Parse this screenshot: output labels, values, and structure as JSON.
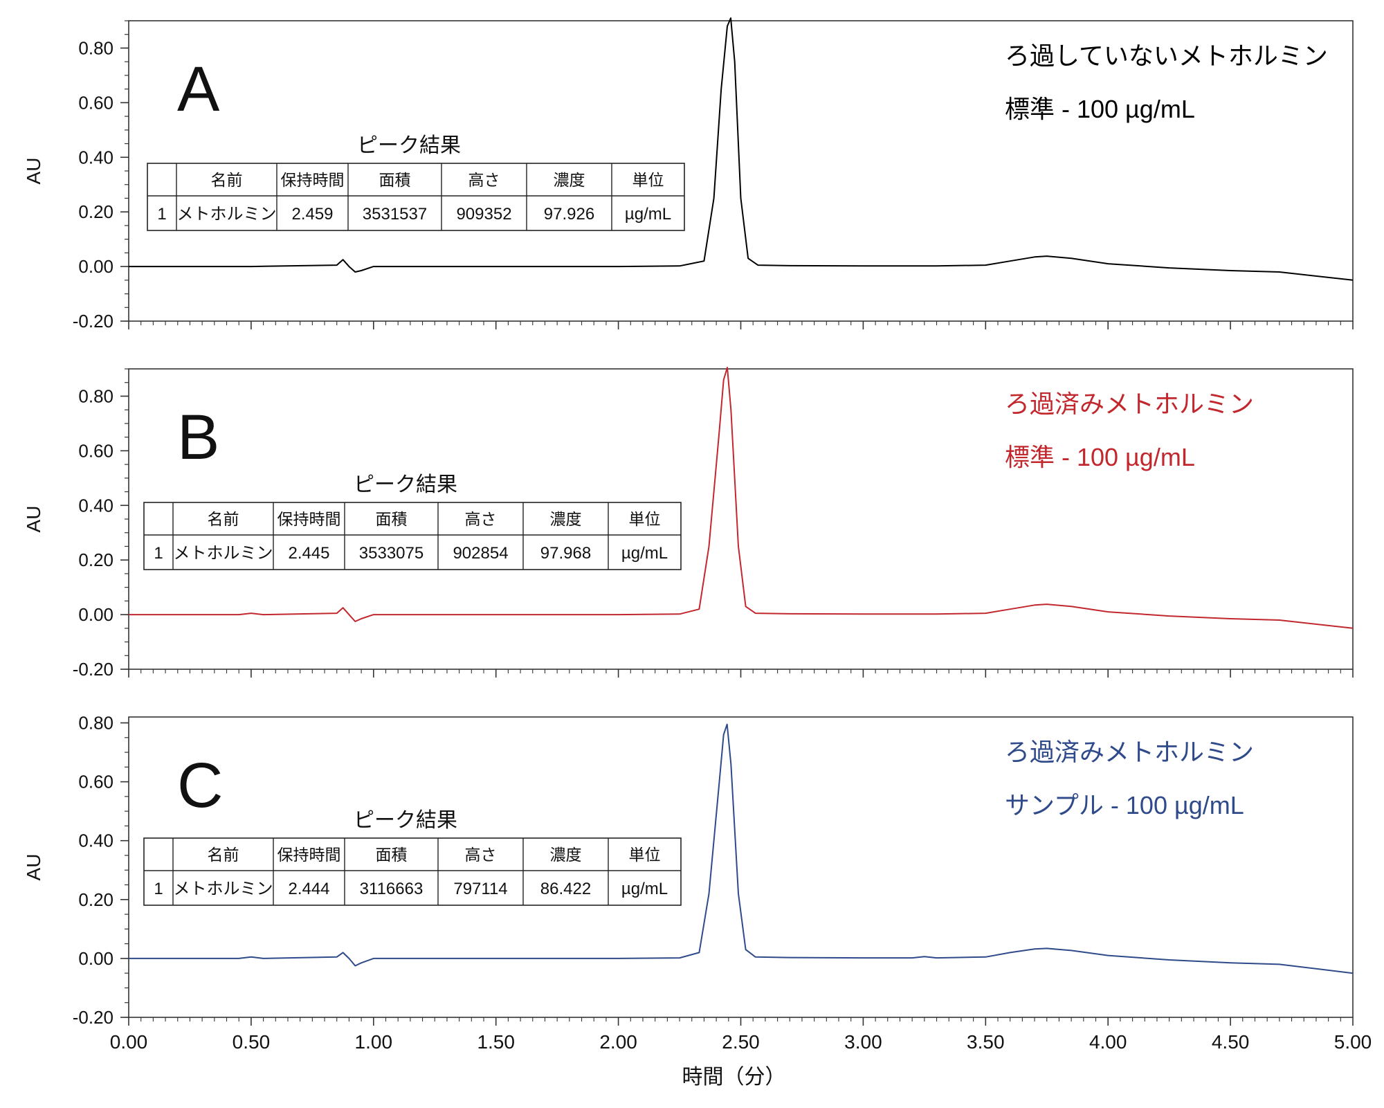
{
  "chart_data": {
    "type": "line",
    "xlabel": "時間（分）",
    "ylabel": "AU",
    "xlim": [
      0.0,
      5.0
    ],
    "x_ticks": [
      "0.00",
      "0.50",
      "1.00",
      "1.50",
      "2.00",
      "2.50",
      "3.00",
      "3.50",
      "4.00",
      "4.50",
      "5.00"
    ],
    "panels": [
      {
        "letter": "A",
        "color": "#000000",
        "title_line1": "ろ過していないメトホルミン",
        "title_line2": "標準 - 100 µg/mL",
        "ylim": [
          -0.2,
          0.9
        ],
        "y_ticks": [
          "0.80",
          "0.60",
          "0.40",
          "0.20",
          "0.00",
          "-0.20"
        ],
        "table_title": "ピーク結果",
        "table_headers": [
          "",
          "名前",
          "保持時間",
          "面積",
          "高さ",
          "濃度",
          "単位"
        ],
        "table_row": [
          "1",
          "メトホルミン",
          "2.459",
          "3531537",
          "909352",
          "97.926",
          "µg/mL"
        ],
        "series": {
          "x": [
            0.0,
            0.5,
            0.85,
            0.875,
            0.9,
            0.925,
            0.95,
            1.0,
            1.5,
            2.0,
            2.25,
            2.35,
            2.39,
            2.42,
            2.445,
            2.459,
            2.475,
            2.5,
            2.53,
            2.57,
            2.7,
            3.0,
            3.3,
            3.5,
            3.6,
            3.7,
            3.75,
            3.85,
            4.0,
            4.25,
            4.5,
            4.7,
            5.0
          ],
          "y": [
            0.0,
            0.0,
            0.005,
            0.025,
            0.0,
            -0.02,
            -0.015,
            0.0,
            0.0,
            0.0,
            0.002,
            0.02,
            0.25,
            0.65,
            0.88,
            0.91,
            0.75,
            0.25,
            0.03,
            0.005,
            0.003,
            0.002,
            0.002,
            0.005,
            0.02,
            0.035,
            0.038,
            0.03,
            0.01,
            -0.005,
            -0.015,
            -0.02,
            -0.05
          ]
        }
      },
      {
        "letter": "B",
        "color": "#c1272d",
        "title_line1": "ろ過済みメトホルミン",
        "title_line2": "標準 - 100 µg/mL",
        "ylim": [
          -0.2,
          0.9
        ],
        "y_ticks": [
          "0.80",
          "0.60",
          "0.40",
          "0.20",
          "0.00",
          "-0.20"
        ],
        "table_title": "ピーク結果",
        "table_headers": [
          "",
          "名前",
          "保持時間",
          "面積",
          "高さ",
          "濃度",
          "単位"
        ],
        "table_row": [
          "1",
          "メトホルミン",
          "2.445",
          "3533075",
          "902854",
          "97.968",
          "µg/mL"
        ],
        "series": {
          "x": [
            0.0,
            0.45,
            0.5,
            0.55,
            0.85,
            0.875,
            0.9,
            0.925,
            0.95,
            1.0,
            1.5,
            2.0,
            2.25,
            2.33,
            2.37,
            2.41,
            2.43,
            2.445,
            2.46,
            2.49,
            2.52,
            2.56,
            2.7,
            3.0,
            3.3,
            3.5,
            3.6,
            3.7,
            3.75,
            3.85,
            4.0,
            4.25,
            4.5,
            4.7,
            5.0
          ],
          "y": [
            0.0,
            0.0,
            0.005,
            0.0,
            0.005,
            0.025,
            0.0,
            -0.025,
            -0.015,
            0.0,
            0.0,
            0.0,
            0.002,
            0.02,
            0.25,
            0.65,
            0.86,
            0.905,
            0.75,
            0.25,
            0.03,
            0.005,
            0.003,
            0.002,
            0.002,
            0.005,
            0.02,
            0.035,
            0.038,
            0.03,
            0.01,
            -0.005,
            -0.015,
            -0.02,
            -0.05
          ]
        }
      },
      {
        "letter": "C",
        "color": "#2e4a8a",
        "title_line1": "ろ過済みメトホルミン",
        "title_line2": "サンプル - 100 µg/mL",
        "ylim": [
          -0.2,
          0.82
        ],
        "y_ticks": [
          "0.80",
          "0.60",
          "0.40",
          "0.20",
          "0.00",
          "-0.20"
        ],
        "table_title": "ピーク結果",
        "table_headers": [
          "",
          "名前",
          "保持時間",
          "面積",
          "高さ",
          "濃度",
          "単位"
        ],
        "table_row": [
          "1",
          "メトホルミン",
          "2.444",
          "3116663",
          "797114",
          "86.422",
          "µg/mL"
        ],
        "series": {
          "x": [
            0.0,
            0.45,
            0.5,
            0.55,
            0.85,
            0.875,
            0.9,
            0.925,
            0.95,
            1.0,
            1.5,
            2.0,
            2.25,
            2.33,
            2.37,
            2.41,
            2.43,
            2.444,
            2.46,
            2.49,
            2.52,
            2.56,
            2.7,
            3.0,
            3.2,
            3.25,
            3.3,
            3.5,
            3.6,
            3.7,
            3.75,
            3.85,
            4.0,
            4.25,
            4.5,
            4.7,
            5.0
          ],
          "y": [
            0.0,
            0.0,
            0.005,
            0.0,
            0.005,
            0.02,
            0.0,
            -0.025,
            -0.015,
            0.0,
            0.0,
            0.0,
            0.002,
            0.02,
            0.22,
            0.58,
            0.76,
            0.795,
            0.66,
            0.22,
            0.03,
            0.005,
            0.003,
            0.002,
            0.002,
            0.006,
            0.002,
            0.005,
            0.02,
            0.032,
            0.034,
            0.027,
            0.01,
            -0.005,
            -0.015,
            -0.02,
            -0.05
          ]
        }
      }
    ]
  }
}
